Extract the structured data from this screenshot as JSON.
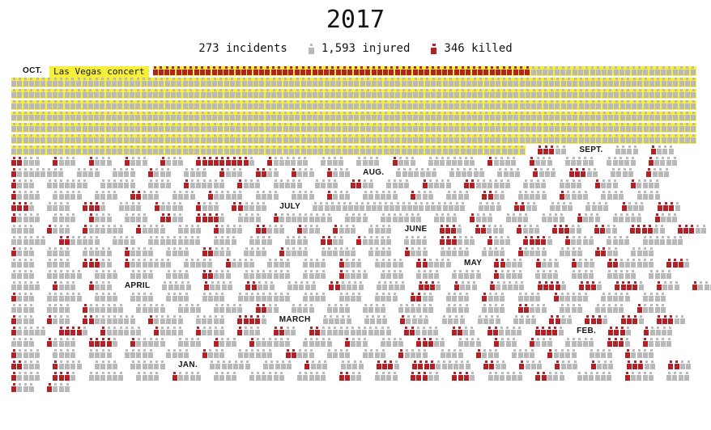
{
  "title": "2017",
  "legend": {
    "incidents": "273 incidents",
    "injured": "1,593 injured",
    "killed": "346 killed"
  },
  "annotation": {
    "oct_label": "OCT.",
    "vegas_label": "Las Vegas concert"
  },
  "colors": {
    "killed": "#b22126",
    "injured": "#b9b9b9",
    "highlight": "#f8ef3a",
    "text": "#141414"
  },
  "chart_data": {
    "type": "pictogram",
    "title": "2017",
    "unit": "one icon = one person (gray = injured, red = killed); groups separated by gaps = individual incidents",
    "totals": {
      "incidents": 273,
      "injured": 1593,
      "killed": 346
    },
    "legend_position": "top",
    "months_order": [
      "OCT.",
      "SEPT.",
      "AUG.",
      "JULY",
      "JUNE",
      "MAY",
      "APRIL",
      "MARCH",
      "FEB.",
      "JAN."
    ],
    "highlighted_incident": {
      "label": "Las Vegas concert",
      "month": "OCT.",
      "highlight_color": "#f8ef3a"
    },
    "rows": [
      [
        {
          "m": "OCT."
        },
        {
          "v": 1
        },
        {
          "k": 64,
          "i": 28,
          "hl": 1
        }
      ],
      [
        {
          "i": 116,
          "hl": 1
        }
      ],
      [
        {
          "i": 116,
          "hl": 1
        }
      ],
      [
        {
          "i": 116,
          "hl": 1
        }
      ],
      [
        {
          "i": 116,
          "hl": 1
        }
      ],
      [
        {
          "i": 116,
          "hl": 1
        }
      ],
      [
        {
          "i": 116,
          "hl": 1
        }
      ],
      [
        {
          "i": 87,
          "hl": 1
        },
        {
          "k": 3,
          "i": 2
        },
        {
          "m": "SEPT."
        },
        {
          "i": 4
        },
        {
          "k": 1,
          "i": 3
        }
      ],
      [
        {
          "k": 2,
          "i": 3
        },
        {
          "k": 1,
          "i": 3
        },
        {
          "k": 1,
          "i": 3
        },
        {
          "k": 1,
          "i": 3
        },
        {
          "k": 1,
          "i": 3
        },
        {
          "k": 9,
          "i": 1
        },
        {
          "k": 1,
          "i": 6
        },
        {
          "i": 4
        },
        {
          "i": 4
        },
        {
          "k": 1,
          "i": 3
        },
        {
          "i": 8
        },
        {
          "k": 1,
          "i": 4
        },
        {
          "k": 1,
          "i": 3
        },
        {
          "i": 5
        },
        {
          "i": 5
        },
        {
          "k": 1,
          "i": 4
        }
      ],
      [
        {
          "k": 1,
          "i": 8
        },
        {
          "i": 4
        },
        {
          "i": 4
        },
        {
          "k": 1,
          "i": 3
        },
        {
          "i": 4
        },
        {
          "k": 1,
          "i": 3
        },
        {
          "k": 2,
          "i": 2
        },
        {
          "k": 1,
          "i": 3
        },
        {
          "k": 1,
          "i": 3
        },
        {
          "m": "AUG."
        },
        {
          "i": 7
        },
        {
          "i": 6
        },
        {
          "i": 4
        },
        {
          "k": 1,
          "i": 3
        },
        {
          "k": 3,
          "i": 2
        },
        {
          "i": 4
        },
        {
          "k": 1,
          "i": 3
        }
      ],
      [
        {
          "k": 1,
          "i": 3
        },
        {
          "i": 7
        },
        {
          "i": 6
        },
        {
          "i": 4
        },
        {
          "k": 1,
          "i": 6
        },
        {
          "k": 1,
          "i": 3
        },
        {
          "i": 5
        },
        {
          "i": 4
        },
        {
          "k": 2,
          "i": 2
        },
        {
          "i": 4
        },
        {
          "k": 1,
          "i": 4
        },
        {
          "k": 2,
          "i": 6
        },
        {
          "i": 4
        },
        {
          "i": 4
        },
        {
          "k": 1,
          "i": 3
        },
        {
          "k": 1,
          "i": 4
        }
      ],
      [
        {
          "k": 1,
          "i": 4
        },
        {
          "i": 5
        },
        {
          "i": 4
        },
        {
          "k": 2,
          "i": 3
        },
        {
          "i": 4
        },
        {
          "k": 1,
          "i": 5
        },
        {
          "i": 4
        },
        {
          "i": 4
        },
        {
          "k": 1,
          "i": 3
        },
        {
          "i": 6
        },
        {
          "k": 1,
          "i": 3
        },
        {
          "i": 4
        },
        {
          "k": 2,
          "i": 2
        },
        {
          "i": 5
        },
        {
          "k": 1,
          "i": 4
        },
        {
          "i": 4
        },
        {
          "i": 4
        }
      ],
      [
        {
          "k": 3,
          "i": 1
        },
        {
          "i": 4
        },
        {
          "k": 3,
          "i": 1
        },
        {
          "i": 4
        },
        {
          "k": 1,
          "i": 4
        },
        {
          "k": 1,
          "i": 3
        },
        {
          "k": 2,
          "i": 4
        },
        {
          "m": "JULY"
        },
        {
          "i": 26
        },
        {
          "i": 4
        },
        {
          "k": 2,
          "i": 2
        },
        {
          "i": 4
        },
        {
          "i": 4
        },
        {
          "k": 1,
          "i": 3
        },
        {
          "k": 3,
          "i": 1
        }
      ],
      [
        {
          "k": 1,
          "i": 4
        },
        {
          "i": 4
        },
        {
          "k": 1,
          "i": 3
        },
        {
          "i": 4
        },
        {
          "k": 2,
          "i": 2
        },
        {
          "k": 4,
          "i": 1
        },
        {
          "i": 4
        },
        {
          "k": 1,
          "i": 9
        },
        {
          "i": 4
        },
        {
          "i": 7
        },
        {
          "i": 4
        },
        {
          "k": 1,
          "i": 3
        },
        {
          "i": 4
        },
        {
          "i": 4
        },
        {
          "k": 1,
          "i": 3
        },
        {
          "i": 5
        },
        {
          "k": 1,
          "i": 3
        }
      ],
      [
        {
          "i": 4
        },
        {
          "k": 1,
          "i": 3
        },
        {
          "k": 1,
          "i": 6
        },
        {
          "k": 1,
          "i": 4
        },
        {
          "i": 4
        },
        {
          "k": 1,
          "i": 4
        },
        {
          "k": 2,
          "i": 3
        },
        {
          "k": 1,
          "i": 3
        },
        {
          "k": 1,
          "i": 3
        },
        {
          "i": 4
        },
        {
          "m": "JUNE"
        },
        {
          "k": 3,
          "i": 1
        },
        {
          "k": 2,
          "i": 3
        },
        {
          "k": 1,
          "i": 3
        },
        {
          "k": 3,
          "i": 2
        },
        {
          "k": 2,
          "i": 2
        },
        {
          "k": 4,
          "i": 2
        },
        {
          "k": 3,
          "i": 2
        }
      ],
      [
        {
          "i": 6
        },
        {
          "k": 2,
          "i": 5
        },
        {
          "i": 4
        },
        {
          "i": 9
        },
        {
          "i": 4
        },
        {
          "i": 4
        },
        {
          "i": 4
        },
        {
          "k": 2,
          "i": 2
        },
        {
          "k": 1,
          "i": 5
        },
        {
          "i": 4
        },
        {
          "k": 3,
          "i": 3
        },
        {
          "k": 1,
          "i": 3
        },
        {
          "k": 4,
          "i": 1
        },
        {
          "k": 1,
          "i": 4
        },
        {
          "i": 4
        },
        {
          "i": 7
        }
      ],
      [
        {
          "k": 1,
          "i": 3
        },
        {
          "i": 4
        },
        {
          "i": 5
        },
        {
          "k": 1,
          "i": 4
        },
        {
          "i": 4
        },
        {
          "k": 2,
          "i": 3
        },
        {
          "i": 4
        },
        {
          "k": 1,
          "i": 4
        },
        {
          "i": 6
        },
        {
          "i": 4
        },
        {
          "k": 1,
          "i": 3
        },
        {
          "i": 5
        },
        {
          "i": 4
        },
        {
          "k": 1,
          "i": 4
        },
        {
          "i": 4
        },
        {
          "k": 2,
          "i": 2
        },
        {
          "i": 4
        }
      ],
      [
        {
          "i": 4
        },
        {
          "i": 4
        },
        {
          "k": 3,
          "i": 2
        },
        {
          "k": 1,
          "i": 7
        },
        {
          "i": 5
        },
        {
          "k": 1,
          "i": 4
        },
        {
          "i": 4
        },
        {
          "i": 4
        },
        {
          "k": 1,
          "i": 3
        },
        {
          "i": 5
        },
        {
          "k": 2,
          "i": 4
        },
        {
          "m": "MAY"
        },
        {
          "k": 2,
          "i": 3
        },
        {
          "k": 1,
          "i": 3
        },
        {
          "k": 1,
          "i": 3
        },
        {
          "k": 2,
          "i": 6
        },
        {
          "k": 3,
          "i": 1
        }
      ],
      [
        {
          "i": 4
        },
        {
          "i": 6
        },
        {
          "i": 4
        },
        {
          "i": 4
        },
        {
          "i": 4
        },
        {
          "k": 2,
          "i": 3
        },
        {
          "i": 8
        },
        {
          "i": 4
        },
        {
          "k": 1,
          "i": 4
        },
        {
          "i": 4
        },
        {
          "i": 4
        },
        {
          "i": 5
        },
        {
          "k": 1,
          "i": 4
        },
        {
          "i": 4
        },
        {
          "i": 4
        },
        {
          "i": 5
        },
        {
          "i": 4
        }
      ],
      [
        {
          "i": 5
        },
        {
          "k": 1,
          "i": 3
        },
        {
          "k": 1,
          "i": 3
        },
        {
          "m": "APRIL"
        },
        {
          "i": 5
        },
        {
          "k": 1,
          "i": 4
        },
        {
          "k": 2,
          "i": 3
        },
        {
          "i": 5
        },
        {
          "k": 2,
          "i": 4
        },
        {
          "i": 5
        },
        {
          "k": 3,
          "i": 1
        },
        {
          "k": 1,
          "i": 3
        },
        {
          "k": 1,
          "i": 5
        },
        {
          "k": 4,
          "i": 1
        },
        {
          "k": 3,
          "i": 1
        },
        {
          "k": 4,
          "i": 1
        },
        {
          "k": 1,
          "i": 3
        },
        {
          "k": 1,
          "i": 3
        }
      ],
      [
        {
          "k": 1,
          "i": 3
        },
        {
          "i": 6
        },
        {
          "i": 4
        },
        {
          "i": 4
        },
        {
          "i": 4
        },
        {
          "i": 4
        },
        {
          "i": 9
        },
        {
          "i": 4
        },
        {
          "i": 4
        },
        {
          "i": 4
        },
        {
          "k": 2,
          "i": 2
        },
        {
          "i": 4
        },
        {
          "k": 1,
          "i": 3
        },
        {
          "i": 4
        },
        {
          "k": 1,
          "i": 5
        },
        {
          "i": 5
        },
        {
          "i": 4
        }
      ],
      [
        {
          "i": 4
        },
        {
          "i": 4
        },
        {
          "k": 1,
          "i": 6
        },
        {
          "i": 5
        },
        {
          "i": 4
        },
        {
          "i": 5
        },
        {
          "k": 2,
          "i": 2
        },
        {
          "i": 4
        },
        {
          "i": 4
        },
        {
          "i": 4
        },
        {
          "i": 6
        },
        {
          "i": 4
        },
        {
          "i": 4
        },
        {
          "k": 2,
          "i": 3
        },
        {
          "i": 4
        },
        {
          "i": 5
        },
        {
          "k": 1,
          "i": 4
        }
      ],
      [
        {
          "k": 1,
          "i": 3
        },
        {
          "k": 1,
          "i": 3
        },
        {
          "k": 2,
          "i": 7
        },
        {
          "k": 1,
          "i": 5
        },
        {
          "i": 5
        },
        {
          "k": 4,
          "i": 1
        },
        {
          "m": "MARCH"
        },
        {
          "i": 5
        },
        {
          "i": 4
        },
        {
          "k": 1,
          "i": 4
        },
        {
          "i": 4
        },
        {
          "i": 4
        },
        {
          "i": 4
        },
        {
          "k": 2,
          "i": 2
        },
        {
          "k": 3,
          "i": 1
        },
        {
          "k": 3,
          "i": 1
        },
        {
          "k": 3,
          "i": 2
        }
      ],
      [
        {
          "k": 1,
          "i": 5
        },
        {
          "k": 4,
          "i": 1
        },
        {
          "k": 1,
          "i": 6
        },
        {
          "k": 1,
          "i": 4
        },
        {
          "k": 1,
          "i": 4
        },
        {
          "k": 1,
          "i": 3
        },
        {
          "k": 2,
          "i": 2
        },
        {
          "k": 2,
          "i": 12
        },
        {
          "k": 2,
          "i": 4
        },
        {
          "k": 2,
          "i": 2
        },
        {
          "k": 2,
          "i": 4
        },
        {
          "k": 4,
          "i": 1
        },
        {
          "m": "FEB."
        },
        {
          "k": 3,
          "i": 1
        },
        {
          "k": 1,
          "i": 4
        }
      ],
      [
        {
          "i": 4
        },
        {
          "k": 1,
          "i": 4
        },
        {
          "k": 4,
          "i": 1
        },
        {
          "k": 1,
          "i": 5
        },
        {
          "i": 4
        },
        {
          "k": 1,
          "i": 3
        },
        {
          "k": 1,
          "i": 6
        },
        {
          "i": 5
        },
        {
          "k": 1,
          "i": 3
        },
        {
          "i": 4
        },
        {
          "k": 3,
          "i": 2
        },
        {
          "i": 4
        },
        {
          "k": 1,
          "i": 3
        },
        {
          "k": 1,
          "i": 3
        },
        {
          "i": 5
        },
        {
          "k": 3,
          "i": 1
        },
        {
          "k": 1,
          "i": 4
        }
      ],
      [
        {
          "k": 1,
          "i": 4
        },
        {
          "i": 4
        },
        {
          "i": 4
        },
        {
          "i": 5
        },
        {
          "i": 4
        },
        {
          "k": 1,
          "i": 3
        },
        {
          "i": 6
        },
        {
          "k": 2,
          "i": 3
        },
        {
          "i": 4
        },
        {
          "i": 4
        },
        {
          "k": 1,
          "i": 4
        },
        {
          "i": 4
        },
        {
          "k": 1,
          "i": 3
        },
        {
          "i": 4
        },
        {
          "k": 1,
          "i": 4
        },
        {
          "i": 4
        },
        {
          "k": 1,
          "i": 4
        }
      ],
      [
        {
          "k": 2,
          "i": 3
        },
        {
          "k": 1,
          "i": 4
        },
        {
          "i": 4
        },
        {
          "i": 6
        },
        {
          "m": "JAN."
        },
        {
          "i": 7
        },
        {
          "i": 5
        },
        {
          "k": 1,
          "i": 3
        },
        {
          "i": 4
        },
        {
          "k": 3,
          "i": 1
        },
        {
          "k": 4,
          "i": 6
        },
        {
          "k": 2,
          "i": 2
        },
        {
          "k": 1,
          "i": 3
        },
        {
          "k": 1,
          "i": 3
        },
        {
          "k": 1,
          "i": 3
        },
        {
          "k": 3,
          "i": 2
        },
        {
          "k": 2,
          "i": 2
        }
      ],
      [
        {
          "k": 1,
          "i": 4
        },
        {
          "k": 3,
          "i": 1
        },
        {
          "i": 6
        },
        {
          "i": 4
        },
        {
          "k": 1,
          "i": 4
        },
        {
          "i": 4
        },
        {
          "i": 6
        },
        {
          "i": 5
        },
        {
          "k": 2,
          "i": 2
        },
        {
          "i": 4
        },
        {
          "k": 3,
          "i": 2
        },
        {
          "k": 3,
          "i": 1
        },
        {
          "i": 6
        },
        {
          "k": 2,
          "i": 3
        },
        {
          "i": 6
        },
        {
          "k": 1,
          "i": 4
        },
        {
          "i": 4
        }
      ],
      [
        {
          "k": 1,
          "i": 3
        },
        {
          "k": 1,
          "i": 3
        }
      ]
    ]
  }
}
